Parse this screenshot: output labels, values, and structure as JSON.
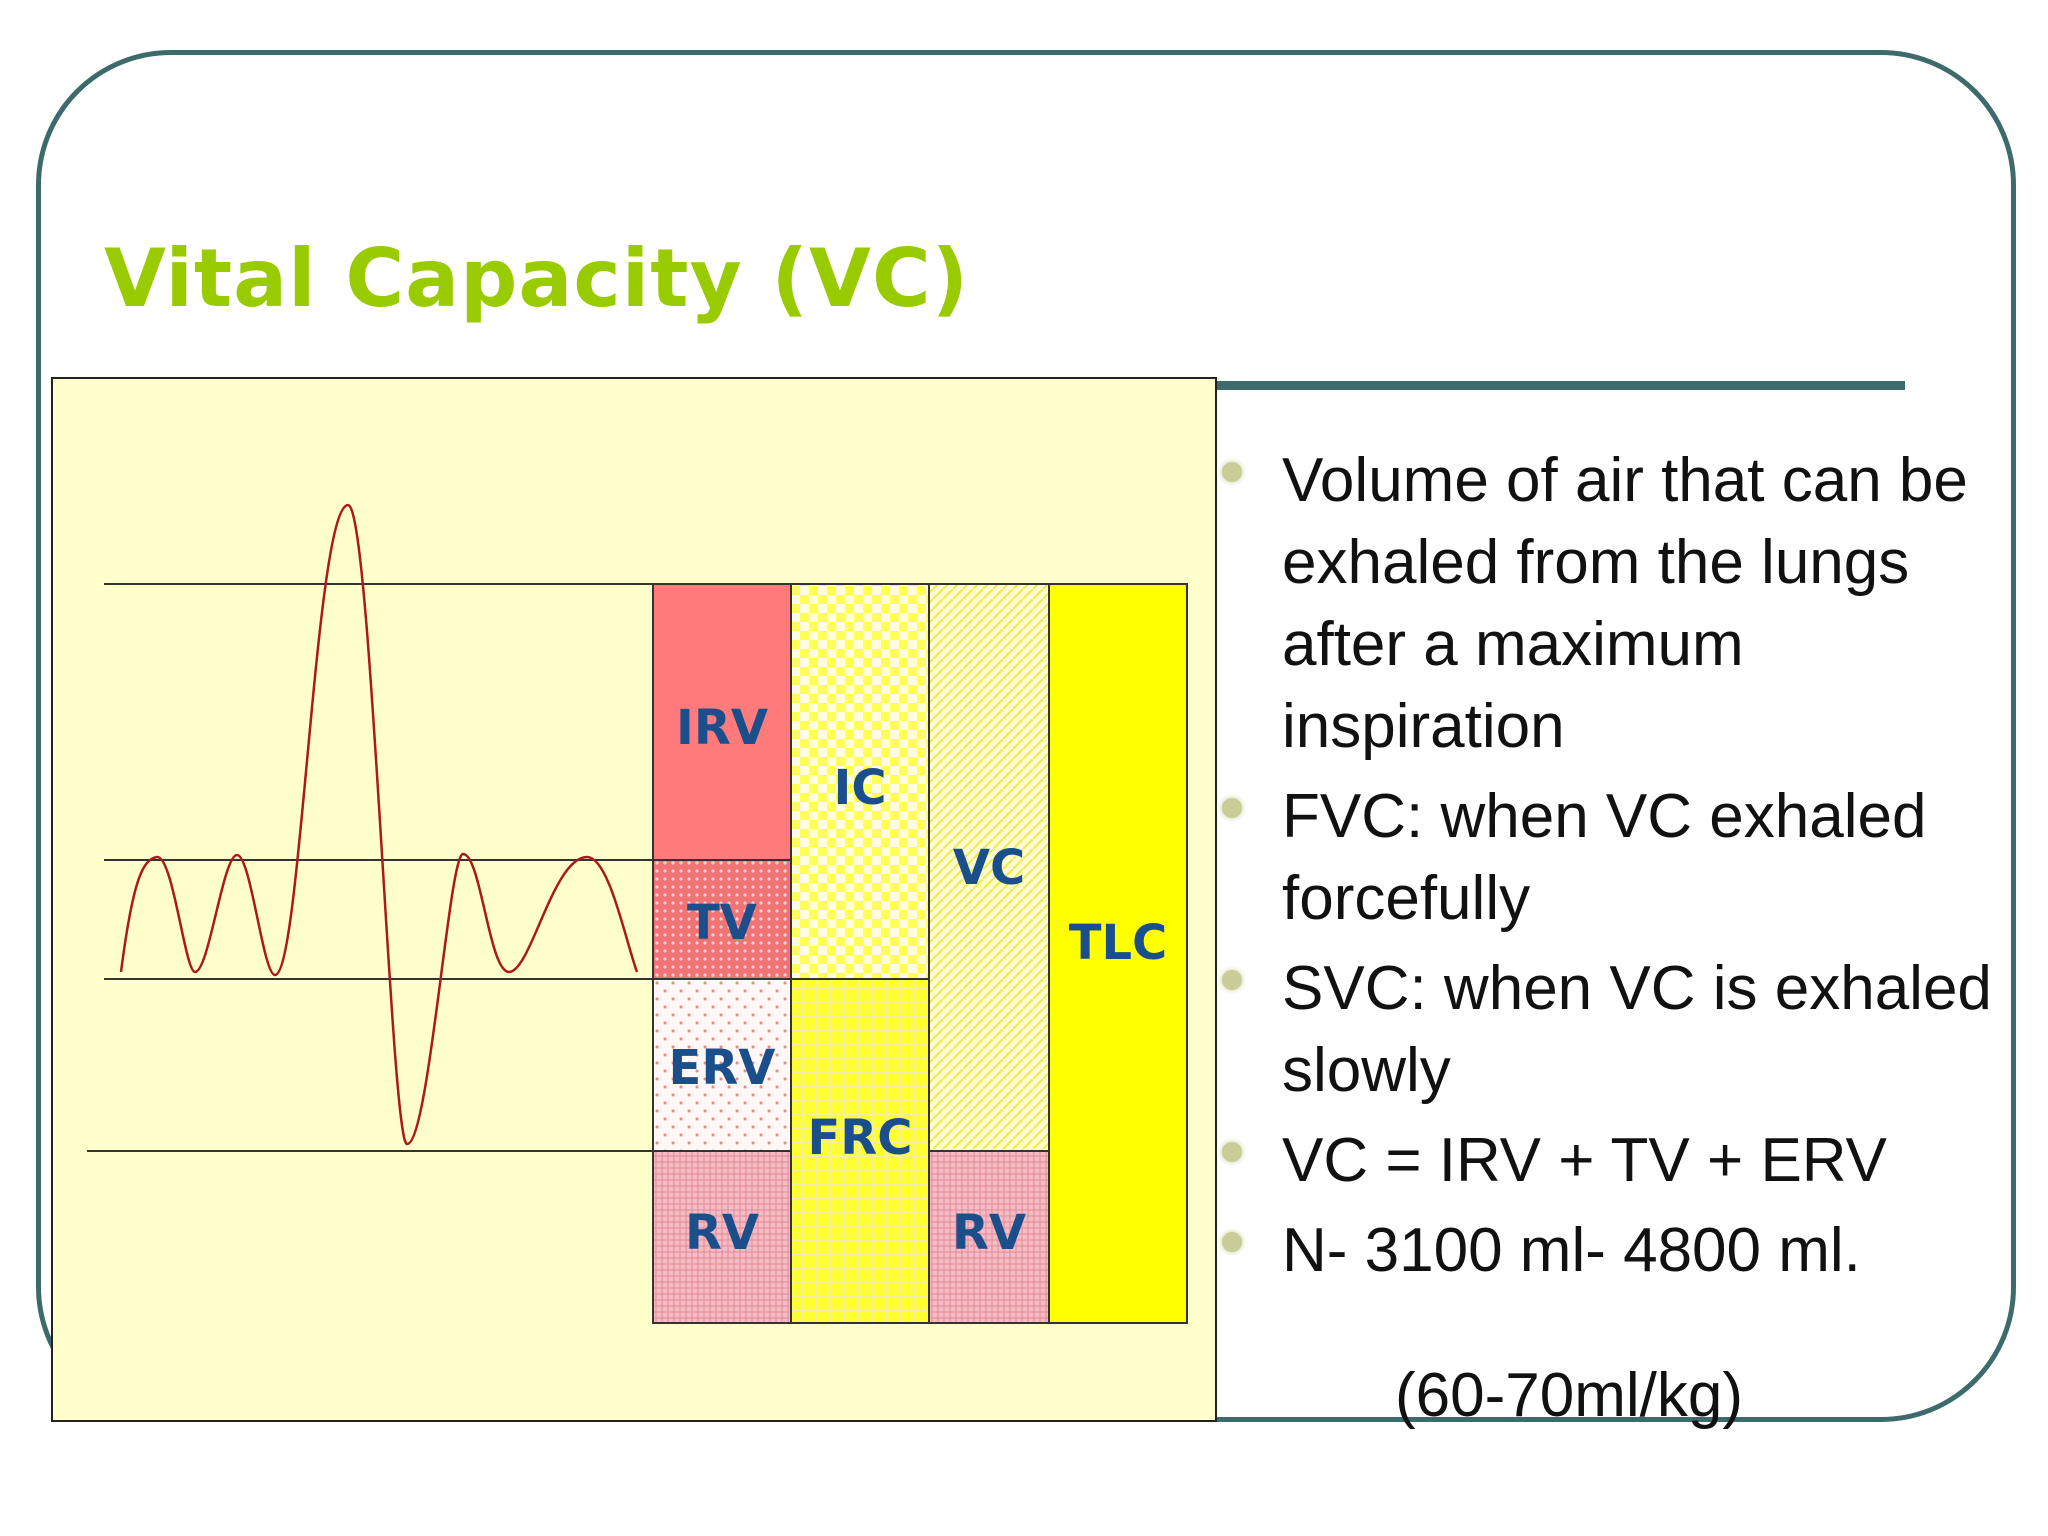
{
  "slide": {
    "title": "Vital Capacity (VC)",
    "accent_color": "#99cc00",
    "frame_color": "#3d6b6b"
  },
  "diagram": {
    "blocks": [
      {
        "id": "irv",
        "label": "IRV",
        "color": "#ff7b7b",
        "pattern": "solid"
      },
      {
        "id": "tv",
        "label": "TV",
        "color": "#f07474",
        "pattern": "dots"
      },
      {
        "id": "erv",
        "label": "ERV",
        "color": "#fff2f2",
        "pattern": "sparse-dots"
      },
      {
        "id": "rv1",
        "label": "RV",
        "color": "#f2b3bd",
        "pattern": "fine-grid"
      },
      {
        "id": "ic",
        "label": "IC",
        "color": "#ffff33",
        "pattern": "checker"
      },
      {
        "id": "frc",
        "label": "FRC",
        "color": "#ffff33",
        "pattern": "grid"
      },
      {
        "id": "vc",
        "label": "VC",
        "color": "#fffcc0",
        "pattern": "diagonal"
      },
      {
        "id": "rv2",
        "label": "RV",
        "color": "#f2b3bd",
        "pattern": "fine-grid"
      },
      {
        "id": "tlc",
        "label": "TLC",
        "color": "#ffff00",
        "pattern": "solid"
      }
    ],
    "trace_color": "#aa1a1a"
  },
  "bullets": [
    "Volume of air that can be exhaled from the lungs after a maximum inspiration",
    "FVC: when VC exhaled forcefully",
    "SVC: when VC is exhaled slowly",
    "VC = IRV + TV + ERV",
    "N- 3100 ml- 4800 ml."
  ],
  "note": "(60-70ml/kg)"
}
